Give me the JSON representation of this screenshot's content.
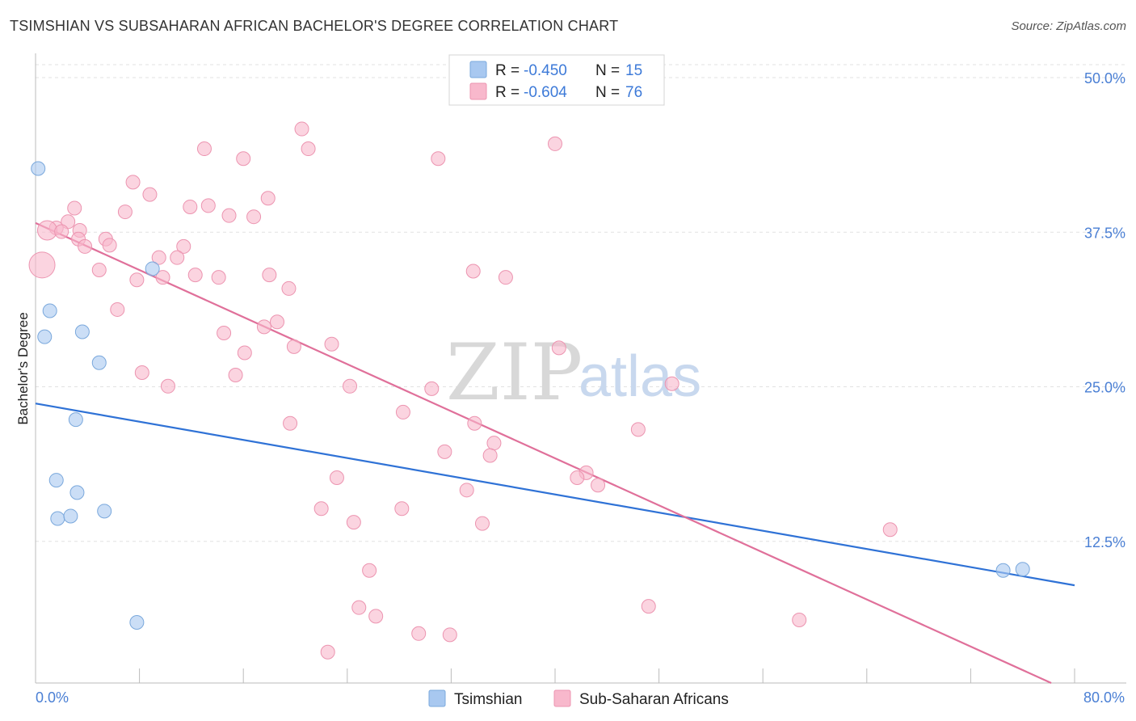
{
  "title": "TSIMSHIAN VS SUBSAHARAN AFRICAN BACHELOR'S DEGREE CORRELATION CHART",
  "source": "Source: ZipAtlas.com",
  "watermark": {
    "zip": "ZIP",
    "atlas": "atlas"
  },
  "legend": {
    "r_label": "R =",
    "n_label": "N =",
    "rows": [
      {
        "r": "-0.450",
        "n": "15",
        "color": "#a8c8f0"
      },
      {
        "r": "-0.604",
        "n": "76",
        "color": "#f8b8cc"
      }
    ]
  },
  "bottom_legend": [
    {
      "label": "Tsimshian",
      "color": "#a8c8f0"
    },
    {
      "label": "Sub-Saharan Africans",
      "color": "#f8b8cc"
    }
  ],
  "chart_data": {
    "type": "scatter",
    "title": "TSIMSHIAN VS SUBSAHARAN AFRICAN BACHELOR'S DEGREE CORRELATION CHART",
    "xlabel": "",
    "ylabel": "Bachelor's Degree",
    "xlim": [
      0,
      80
    ],
    "ylim": [
      0,
      50
    ],
    "x_tick_labels": [
      "0.0%",
      "80.0%"
    ],
    "y_tick_labels": [
      "50.0%",
      "37.5%",
      "25.0%",
      "12.5%"
    ],
    "y_ticks": [
      50,
      37.5,
      25,
      12.5
    ],
    "grid": true,
    "legend_position": "top-center",
    "series": [
      {
        "name": "Tsimshian",
        "color": "#a8c8f0",
        "stroke": "#7aa8dc",
        "trend_color": "#2f72d6",
        "trend": [
          [
            0,
            22.6
          ],
          [
            80,
            7.9
          ]
        ],
        "points": [
          [
            0.2,
            41.6
          ],
          [
            1.1,
            30.1
          ],
          [
            0.7,
            28.0
          ],
          [
            3.6,
            28.4
          ],
          [
            9.0,
            33.5
          ],
          [
            4.9,
            25.9
          ],
          [
            3.1,
            21.3
          ],
          [
            1.6,
            16.4
          ],
          [
            3.2,
            15.4
          ],
          [
            5.3,
            13.9
          ],
          [
            1.7,
            13.3
          ],
          [
            2.7,
            13.5
          ],
          [
            7.8,
            4.9
          ],
          [
            74.5,
            9.1
          ],
          [
            76.0,
            9.2
          ]
        ]
      },
      {
        "name": "Sub-Saharan Africans",
        "color": "#f8b8cc",
        "stroke": "#ec94b0",
        "trend_color": "#e0709a",
        "trend": [
          [
            0,
            37.2
          ],
          [
            78.2,
            0
          ]
        ],
        "points": [
          [
            20.5,
            44.8
          ],
          [
            13.0,
            43.2
          ],
          [
            21.0,
            43.2
          ],
          [
            16.0,
            42.4
          ],
          [
            31.0,
            42.4
          ],
          [
            40.0,
            43.6
          ],
          [
            7.5,
            40.5
          ],
          [
            8.8,
            39.5
          ],
          [
            11.9,
            38.5
          ],
          [
            13.3,
            38.6
          ],
          [
            17.9,
            39.2
          ],
          [
            6.9,
            38.1
          ],
          [
            14.9,
            37.8
          ],
          [
            16.8,
            37.7
          ],
          [
            3.0,
            38.4
          ],
          [
            2.5,
            37.3
          ],
          [
            1.6,
            36.8
          ],
          [
            0.9,
            36.6
          ],
          [
            3.4,
            36.6
          ],
          [
            2.0,
            36.5
          ],
          [
            5.4,
            35.9
          ],
          [
            3.3,
            35.9
          ],
          [
            5.7,
            35.4
          ],
          [
            11.4,
            35.3
          ],
          [
            3.8,
            35.3
          ],
          [
            10.9,
            34.4
          ],
          [
            9.5,
            34.4
          ],
          [
            0.5,
            33.8
          ],
          [
            4.9,
            33.4
          ],
          [
            7.8,
            32.6
          ],
          [
            9.8,
            32.8
          ],
          [
            12.3,
            33.0
          ],
          [
            14.1,
            32.8
          ],
          [
            18.0,
            33.0
          ],
          [
            33.7,
            33.3
          ],
          [
            36.2,
            32.8
          ],
          [
            19.5,
            31.9
          ],
          [
            6.3,
            30.2
          ],
          [
            18.6,
            29.2
          ],
          [
            17.6,
            28.8
          ],
          [
            14.5,
            28.3
          ],
          [
            19.9,
            27.2
          ],
          [
            22.8,
            27.4
          ],
          [
            40.3,
            27.1
          ],
          [
            16.1,
            26.7
          ],
          [
            8.2,
            25.1
          ],
          [
            15.4,
            24.9
          ],
          [
            10.2,
            24.0
          ],
          [
            24.2,
            24.0
          ],
          [
            30.5,
            23.8
          ],
          [
            49.0,
            24.2
          ],
          [
            28.3,
            21.9
          ],
          [
            19.6,
            21.0
          ],
          [
            33.8,
            21.0
          ],
          [
            46.4,
            20.5
          ],
          [
            35.3,
            19.4
          ],
          [
            31.5,
            18.7
          ],
          [
            35.0,
            18.4
          ],
          [
            42.4,
            17.0
          ],
          [
            41.7,
            16.6
          ],
          [
            23.2,
            16.6
          ],
          [
            43.3,
            16.0
          ],
          [
            33.2,
            15.6
          ],
          [
            22.0,
            14.1
          ],
          [
            28.2,
            14.1
          ],
          [
            24.5,
            13.0
          ],
          [
            34.4,
            12.9
          ],
          [
            65.8,
            12.4
          ],
          [
            25.7,
            9.1
          ],
          [
            24.9,
            6.1
          ],
          [
            26.2,
            5.4
          ],
          [
            47.2,
            6.2
          ],
          [
            58.8,
            5.1
          ],
          [
            29.5,
            4.0
          ],
          [
            31.9,
            3.9
          ],
          [
            22.5,
            2.5
          ]
        ]
      }
    ]
  }
}
